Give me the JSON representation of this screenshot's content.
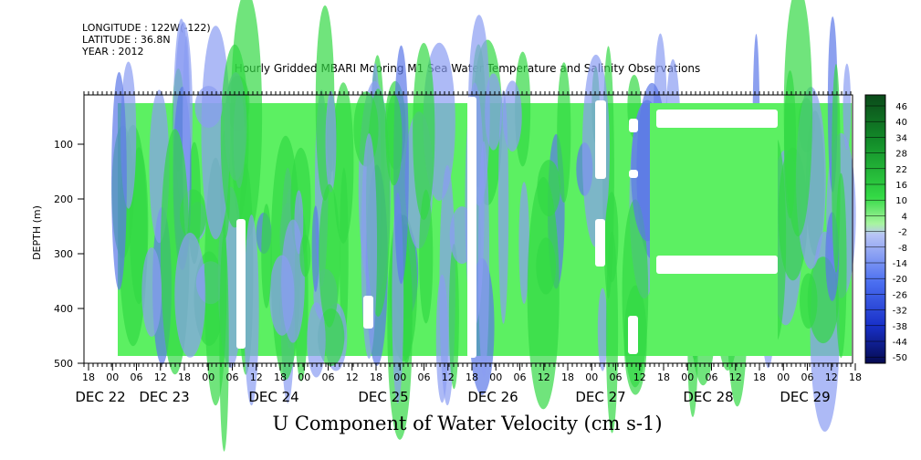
{
  "header": {
    "longitude": "LONGITUDE : 122W(-122)",
    "latitude": "LATITUDE : 36.8N",
    "year": "YEAR : 2012"
  },
  "chart_data": {
    "type": "heatmap",
    "title": "Hourly Gridded MBARI Mooring M1 Sea Water Temperature and Salinity Observations",
    "xlabel": "U Component of Water Velocity (cm s-1)",
    "ylabel": "DEPTH (m)",
    "ylim": [
      500,
      10
    ],
    "y_ticks": [
      100,
      200,
      300,
      400,
      500
    ],
    "x_hour_ticks": [
      "18",
      "00",
      "06",
      "12",
      "18",
      "00",
      "06",
      "12",
      "18",
      "00",
      "06",
      "12",
      "18",
      "00",
      "06",
      "12",
      "18",
      "00",
      "06",
      "12",
      "18",
      "00",
      "06",
      "12",
      "18",
      "00",
      "06",
      "12",
      "18",
      "00",
      "06",
      "12",
      "18"
    ],
    "x_day_labels": [
      "DEC 22",
      "DEC 23",
      "DEC 24",
      "DEC 25",
      "DEC 26",
      "DEC 27",
      "DEC 28",
      "DEC 29"
    ],
    "colorbar_labels": [
      "46",
      "40",
      "34",
      "28",
      "22",
      "16",
      "10",
      "4",
      "-2",
      "-8",
      "-14",
      "-20",
      "-26",
      "-32",
      "-38",
      "-44",
      "-50"
    ],
    "colorbar_range": [
      -50,
      52
    ],
    "colors": {
      "background_field": "#5cf062",
      "positive": "#33d945",
      "negative": "#8a9cf2",
      "strong_negative": "#5b78e8"
    }
  }
}
